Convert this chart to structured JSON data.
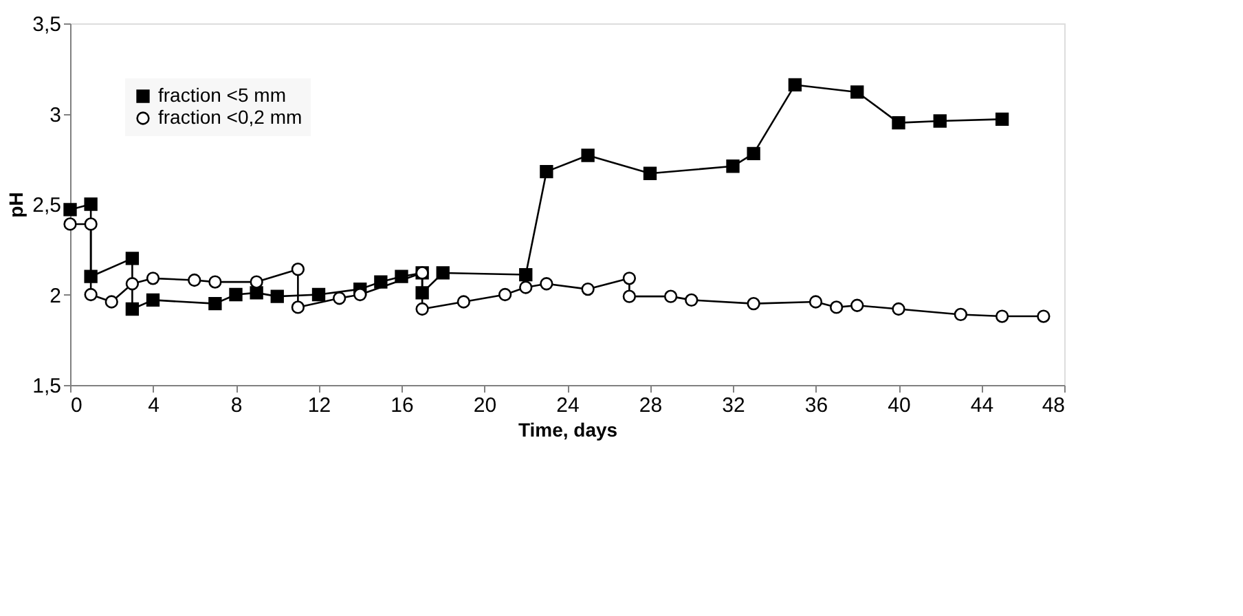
{
  "chart_data": {
    "type": "line",
    "xlabel": "Time, days",
    "ylabel": "pH",
    "xlim": [
      0,
      48
    ],
    "xticks": [
      0,
      4,
      8,
      12,
      16,
      20,
      24,
      28,
      32,
      36,
      40,
      44,
      48
    ],
    "ylim": [
      1.5,
      3.5
    ],
    "yticks": [
      {
        "value": 1.5,
        "label": "1,5"
      },
      2,
      {
        "value": 2.5,
        "label": "2,5"
      },
      3,
      {
        "value": 3.5,
        "label": "3,5"
      }
    ],
    "grid": false,
    "legend": "top left",
    "line_style": "solid",
    "series": [
      {
        "name": "fraction <5 mm",
        "color": "#000000",
        "marker": "square",
        "x": [
          0,
          1,
          1,
          3,
          3,
          4,
          7,
          8,
          9,
          10,
          12,
          14,
          15,
          16,
          17,
          17,
          18,
          22,
          23,
          25,
          28,
          32,
          33,
          35,
          38,
          40,
          42,
          45
        ],
        "values": [
          2.47,
          2.5,
          2.1,
          2.2,
          1.92,
          1.97,
          1.95,
          2.0,
          2.01,
          1.99,
          2.0,
          2.03,
          2.07,
          2.1,
          2.12,
          2.01,
          2.12,
          2.11,
          2.68,
          2.77,
          2.67,
          2.71,
          2.78,
          3.16,
          3.12,
          2.95,
          2.96,
          2.97
        ]
      },
      {
        "name": "fraction <0,2 mm",
        "color": "#000000",
        "marker": "circle",
        "x": [
          0,
          1,
          1,
          2,
          3,
          4,
          6,
          7,
          9,
          11,
          11,
          13,
          14,
          17,
          17,
          19,
          21,
          22,
          23,
          25,
          27,
          27,
          29,
          30,
          33,
          36,
          37,
          38,
          40,
          43,
          45,
          47
        ],
        "values": [
          2.39,
          2.39,
          2.0,
          1.96,
          2.06,
          2.09,
          2.08,
          2.07,
          2.07,
          2.14,
          1.93,
          1.98,
          2.0,
          2.12,
          1.92,
          1.96,
          2.0,
          2.04,
          2.06,
          2.03,
          2.09,
          1.99,
          1.99,
          1.97,
          1.95,
          1.96,
          1.93,
          1.94,
          1.92,
          1.89,
          1.88,
          1.88
        ]
      }
    ]
  }
}
